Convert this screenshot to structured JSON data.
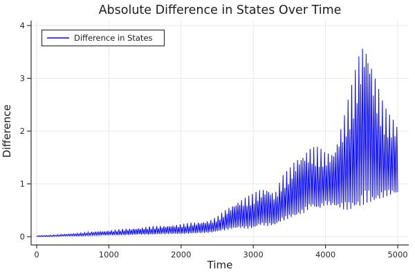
{
  "window": {
    "background": "#ffffff"
  },
  "chart": {
    "title": "Absolute Difference in States Over Time",
    "xlabel": "Time",
    "ylabel": "Difference",
    "legend": {
      "label": "Difference in States"
    },
    "colors": {
      "line": "#0000ff",
      "grid": "#e9e9e9",
      "axis": "#2d2d2d",
      "text": "#1c1c1c",
      "legend_border": "#333333",
      "background": "#ffffff"
    }
  },
  "chart_data": {
    "type": "line",
    "title": "Absolute Difference in States Over Time",
    "xlabel": "Time",
    "ylabel": "Difference",
    "grid": true,
    "legend_position": "top-left",
    "xlim": [
      0,
      5000
    ],
    "ylim": [
      0,
      4
    ],
    "x_ticks": [
      0,
      1000,
      2000,
      3000,
      4000,
      5000
    ],
    "y_ticks": [
      0,
      1,
      2,
      3,
      4
    ],
    "series": [
      {
        "name": "Difference in States",
        "color": "#0000ff",
        "style": "high-frequency absolute-difference oscillation between lower and upper envelope"
      }
    ],
    "oscillation_period": 25,
    "envelope": {
      "description": "Sampled [time, lower, upper] bounds of the oscillating |difference| signal read from the plot",
      "points": [
        [
          0,
          0.0,
          0.02
        ],
        [
          200,
          0.0,
          0.03
        ],
        [
          400,
          0.01,
          0.05
        ],
        [
          600,
          0.01,
          0.07
        ],
        [
          800,
          0.02,
          0.1
        ],
        [
          1000,
          0.02,
          0.12
        ],
        [
          1200,
          0.02,
          0.15
        ],
        [
          1400,
          0.03,
          0.17
        ],
        [
          1600,
          0.03,
          0.2
        ],
        [
          1800,
          0.04,
          0.22
        ],
        [
          2000,
          0.04,
          0.24
        ],
        [
          2200,
          0.05,
          0.28
        ],
        [
          2400,
          0.06,
          0.32
        ],
        [
          2500,
          0.08,
          0.38
        ],
        [
          2600,
          0.1,
          0.5
        ],
        [
          2700,
          0.12,
          0.62
        ],
        [
          2800,
          0.13,
          0.72
        ],
        [
          2900,
          0.12,
          0.76
        ],
        [
          3000,
          0.12,
          0.82
        ],
        [
          3100,
          0.18,
          0.92
        ],
        [
          3200,
          0.16,
          0.98
        ],
        [
          3300,
          0.18,
          0.85
        ],
        [
          3400,
          0.25,
          1.15
        ],
        [
          3500,
          0.3,
          1.3
        ],
        [
          3600,
          0.32,
          1.55
        ],
        [
          3700,
          0.38,
          1.68
        ],
        [
          3800,
          0.5,
          1.72
        ],
        [
          3900,
          0.45,
          1.7
        ],
        [
          4000,
          0.55,
          1.62
        ],
        [
          4100,
          0.52,
          1.68
        ],
        [
          4150,
          0.48,
          1.85
        ],
        [
          4200,
          0.45,
          2.1
        ],
        [
          4250,
          0.42,
          2.3
        ],
        [
          4300,
          0.4,
          2.55
        ],
        [
          4350,
          0.38,
          2.8
        ],
        [
          4400,
          0.38,
          3.1
        ],
        [
          4450,
          0.36,
          3.45
        ],
        [
          4500,
          0.4,
          3.78
        ],
        [
          4550,
          0.45,
          3.95
        ],
        [
          4600,
          0.5,
          3.72
        ],
        [
          4650,
          0.45,
          3.4
        ],
        [
          4700,
          0.52,
          3.05
        ],
        [
          4750,
          0.58,
          2.78
        ],
        [
          4800,
          0.64,
          2.52
        ],
        [
          4850,
          0.68,
          2.4
        ],
        [
          4900,
          0.7,
          2.32
        ],
        [
          4950,
          0.72,
          2.28
        ],
        [
          5000,
          0.7,
          2.2
        ]
      ]
    },
    "peak": {
      "time": 4550,
      "value": 3.95
    }
  }
}
